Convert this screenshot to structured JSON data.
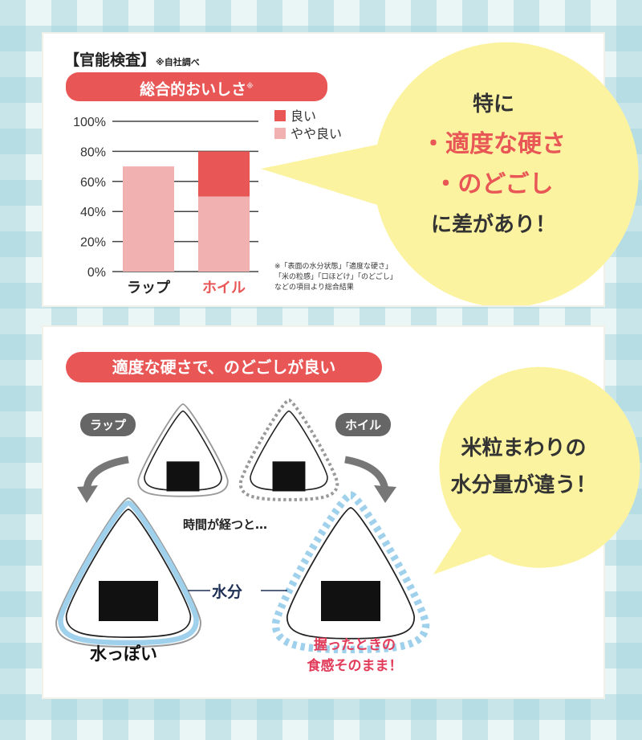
{
  "panel1": {
    "heading": "【官能検査】",
    "heading_note": "※自社調べ",
    "title": "総合的おいしさ",
    "title_mark": "※",
    "footnote": [
      "※「表面の水分状態」「適度な硬さ」",
      "「米の粒感」「口ほどけ」「のどごし」",
      "などの項目より総合結果"
    ],
    "bubble": {
      "line1": "特に",
      "line2": "・適度な硬さ",
      "line3": "・のどごし",
      "line4": "に差があり！"
    }
  },
  "chart_data": {
    "type": "bar",
    "stacked": true,
    "title": "総合的おいしさ",
    "categories": [
      "ラップ",
      "ホイル"
    ],
    "category_colors": [
      "#222222",
      "#e85656"
    ],
    "series": [
      {
        "name": "やや良い",
        "values": [
          70,
          50
        ],
        "color": "#f2b1b1"
      },
      {
        "name": "良い",
        "values": [
          0,
          30
        ],
        "color": "#e85656"
      }
    ],
    "yticks": [
      "100%",
      "80%",
      "60%",
      "40%",
      "20%",
      "0%"
    ],
    "ylim": [
      0,
      100
    ],
    "grid": true,
    "legend": "top-right"
  },
  "panel2": {
    "title": "適度な硬さで、のどごしが良い",
    "wrap_label": "ラップ",
    "foil_label": "ホイル",
    "time_text": "時間が経つと…",
    "moisture_label": "水分",
    "wrap_result": "水っぽい",
    "foil_result_1": "握ったときの",
    "foil_result_2": "食感そのまま！",
    "bubble": {
      "line1": "米粒まわりの",
      "line2": "水分量が違う！"
    }
  },
  "colors": {
    "accent": "#e85656",
    "light": "#f2b1b1",
    "bubble": "#fbf3a0",
    "moisture": "#9fd0ec",
    "navy": "#1e2f55"
  }
}
